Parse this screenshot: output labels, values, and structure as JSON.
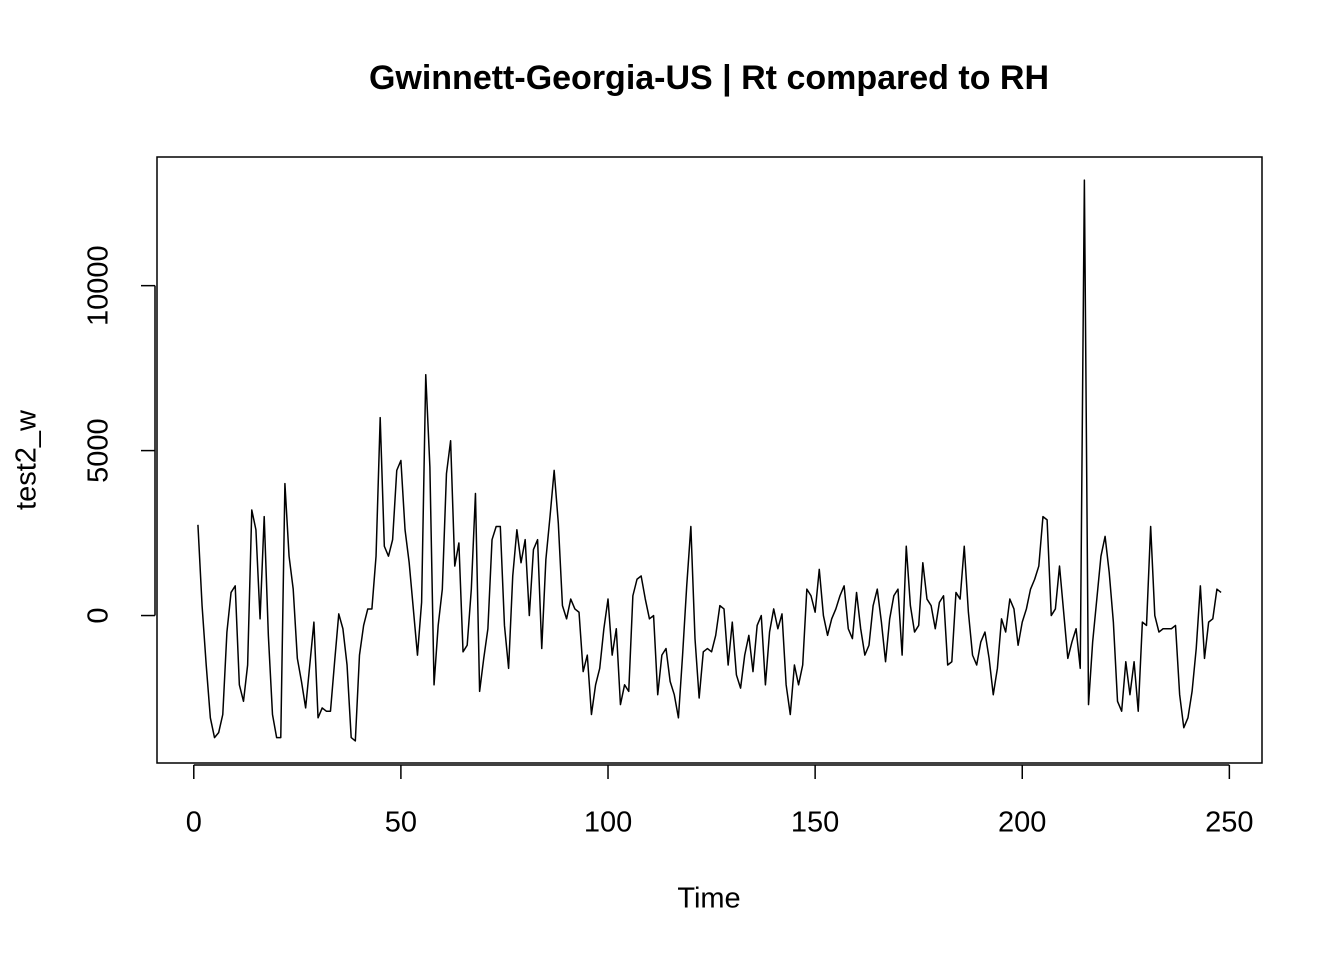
{
  "chart_data": {
    "type": "line",
    "title": "Gwinnett-Georgia-US | Rt compared to RH",
    "x_label": "Time",
    "y_label": "test2_w",
    "x": [
      1,
      2,
      3,
      4,
      5,
      6,
      7,
      8,
      9,
      10,
      11,
      12,
      13,
      14,
      15,
      16,
      17,
      18,
      19,
      20,
      21,
      22,
      23,
      24,
      25,
      26,
      27,
      28,
      29,
      30,
      31,
      32,
      33,
      34,
      35,
      36,
      37,
      38,
      39,
      40,
      41,
      42,
      43,
      44,
      45,
      46,
      47,
      48,
      49,
      50,
      51,
      52,
      53,
      54,
      55,
      56,
      57,
      58,
      59,
      60,
      61,
      62,
      63,
      64,
      65,
      66,
      67,
      68,
      69,
      70,
      71,
      72,
      73,
      74,
      75,
      76,
      77,
      78,
      79,
      80,
      81,
      82,
      83,
      84,
      85,
      86,
      87,
      88,
      89,
      90,
      91,
      92,
      93,
      94,
      95,
      96,
      97,
      98,
      99,
      100,
      101,
      102,
      103,
      104,
      105,
      106,
      107,
      108,
      109,
      110,
      111,
      112,
      113,
      114,
      115,
      116,
      117,
      118,
      119,
      120,
      121,
      122,
      123,
      124,
      125,
      126,
      127,
      128,
      129,
      130,
      131,
      132,
      133,
      134,
      135,
      136,
      137,
      138,
      139,
      140,
      141,
      142,
      143,
      144,
      145,
      146,
      147,
      148,
      149,
      150,
      151,
      152,
      153,
      154,
      155,
      156,
      157,
      158,
      159,
      160,
      161,
      162,
      163,
      164,
      165,
      166,
      167,
      168,
      169,
      170,
      171,
      172,
      173,
      174,
      175,
      176,
      177,
      178,
      179,
      180,
      181,
      182,
      183,
      184,
      185,
      186,
      187,
      188,
      189,
      190,
      191,
      192,
      193,
      194,
      195,
      196,
      197,
      198,
      199,
      200,
      201,
      202,
      203,
      204,
      205,
      206,
      207,
      208,
      209,
      210,
      211,
      212,
      213,
      214,
      215,
      216,
      217,
      218,
      219,
      220,
      221,
      222,
      223,
      224,
      225,
      226,
      227,
      228,
      229,
      230,
      231,
      232,
      233,
      234,
      235,
      236,
      237,
      238,
      239,
      240,
      241,
      242,
      243,
      244,
      245,
      246,
      247,
      248
    ],
    "series": [
      {
        "name": "test2_w",
        "color": "#000000",
        "values": [
          2750,
          300,
          -1500,
          -3100,
          -3700,
          -3550,
          -3000,
          -500,
          700,
          900,
          -2100,
          -2600,
          -1500,
          3200,
          2600,
          -100,
          3000,
          -600,
          -3000,
          -3700,
          -3700,
          4000,
          1800,
          800,
          -1300,
          -2000,
          -2800,
          -1500,
          -200,
          -3100,
          -2800,
          -2900,
          -2900,
          -1400,
          50,
          -400,
          -1500,
          -3700,
          -3800,
          -1200,
          -300,
          200,
          200,
          1800,
          6000,
          2100,
          1800,
          2300,
          4400,
          4700,
          2600,
          1600,
          200,
          -1200,
          400,
          7300,
          4500,
          -2100,
          -300,
          800,
          4300,
          5300,
          1500,
          2200,
          -1100,
          -900,
          800,
          3700,
          -2300,
          -1300,
          -400,
          2300,
          2700,
          2700,
          -300,
          -1600,
          1200,
          2600,
          1600,
          2300,
          0,
          2000,
          2300,
          -1000,
          1700,
          3000,
          4400,
          2800,
          300,
          -100,
          500,
          200,
          100,
          -1700,
          -1200,
          -3000,
          -2100,
          -1600,
          -400,
          500,
          -1200,
          -400,
          -2700,
          -2100,
          -2300,
          600,
          1100,
          1200,
          500,
          -100,
          0,
          -2400,
          -1200,
          -1000,
          -2000,
          -2400,
          -3100,
          -1200,
          900,
          2700,
          -700,
          -2500,
          -1100,
          -1000,
          -1100,
          -600,
          300,
          200,
          -1500,
          -200,
          -1800,
          -2200,
          -1200,
          -600,
          -1700,
          -300,
          0,
          -2100,
          -500,
          200,
          -400,
          50,
          -2100,
          -3000,
          -1500,
          -2100,
          -1500,
          800,
          600,
          100,
          1400,
          0,
          -600,
          -100,
          200,
          600,
          900,
          -400,
          -700,
          700,
          -400,
          -1200,
          -900,
          300,
          800,
          -200,
          -1400,
          -100,
          600,
          800,
          -1200,
          2100,
          300,
          -500,
          -300,
          1600,
          500,
          300,
          -400,
          400,
          600,
          -1500,
          -1400,
          700,
          500,
          2100,
          100,
          -1200,
          -1500,
          -800,
          -500,
          -1300,
          -2400,
          -1600,
          -100,
          -500,
          500,
          200,
          -900,
          -200,
          200,
          800,
          1100,
          1500,
          3000,
          2900,
          0,
          200,
          1500,
          100,
          -1300,
          -800,
          -400,
          -1600,
          13200,
          -2700,
          -800,
          500,
          1800,
          2400,
          1300,
          -200,
          -2600,
          -2900,
          -1400,
          -2400,
          -1400,
          -2900,
          -200,
          -300,
          2700,
          0,
          -500,
          -400,
          -400,
          -400,
          -300,
          -2400,
          -3400,
          -3100,
          -2300,
          -1000,
          900,
          -1300,
          -200,
          -100,
          800,
          700
        ]
      }
    ],
    "xlim": [
      -8.88,
      257.88
    ],
    "ylim": [
      -4470,
      13900
    ],
    "xticks": [
      0,
      50,
      100,
      150,
      200,
      250
    ],
    "yticks": [
      0,
      5000,
      10000
    ]
  }
}
